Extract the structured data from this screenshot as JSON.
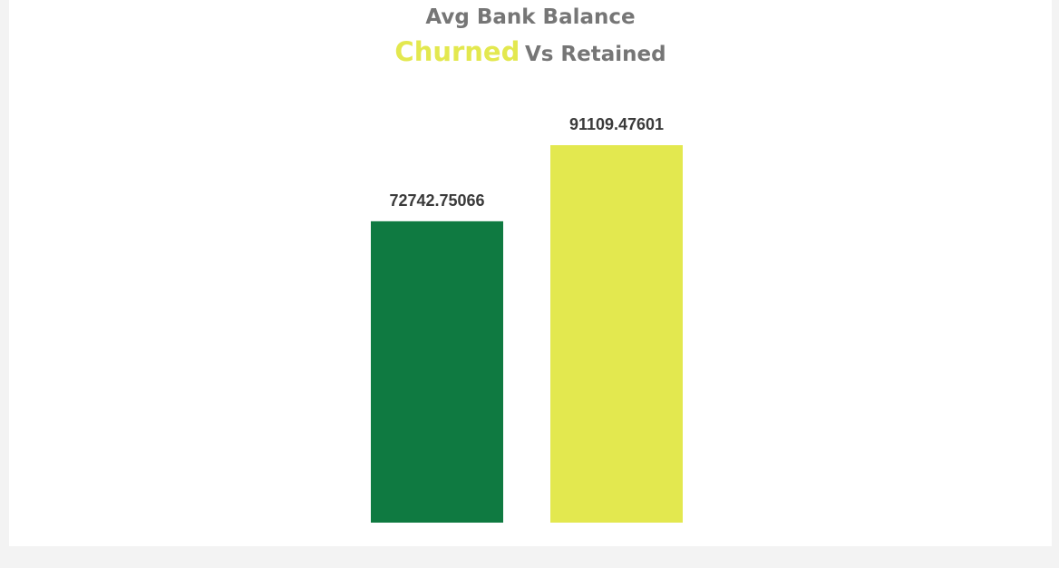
{
  "title": {
    "line1": "Avg Bank Balance",
    "highlight": "Churned",
    "rest": "Vs Retained"
  },
  "colors": {
    "title_text": "#767676",
    "highlight": "#e3e84f",
    "churned_bar": "#0f7a41",
    "retained_bar": "#e3e84f",
    "label_text": "#3a3a3a",
    "page_background": "#f3f3f3",
    "panel_background": "#ffffff"
  },
  "chart_data": {
    "type": "bar",
    "categories": [
      "",
      ""
    ],
    "values": [
      72742.75066,
      91109.47601
    ],
    "data_labels": [
      "72742.75066",
      "91109.47601"
    ],
    "bar_colors": [
      "#0f7a41",
      "#e3e84f"
    ],
    "title": "Avg Bank Balance Churned Vs Retained",
    "xlabel": "",
    "ylabel": "",
    "ylim": [
      0,
      91109.47601
    ],
    "grid": false,
    "legend": "none",
    "axes_visible": false
  }
}
